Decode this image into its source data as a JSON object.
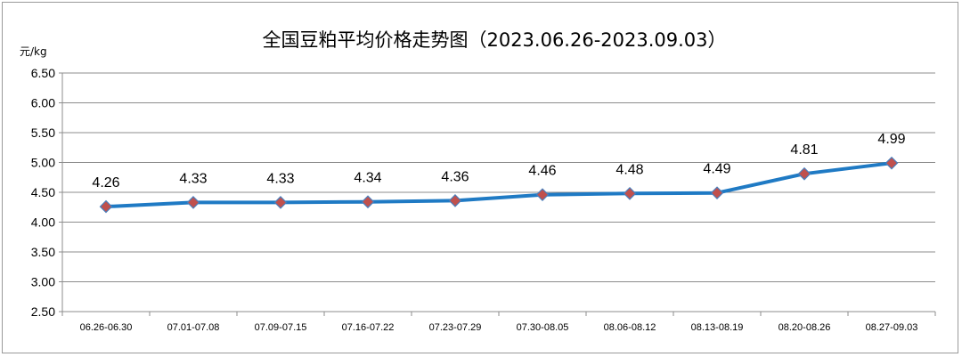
{
  "chart_data": {
    "type": "line",
    "title": "全国豆粕平均价格走势图（2023.06.26-2023.09.03）",
    "ylabel": "元/kg",
    "xlabel": "",
    "ylim": [
      2.5,
      6.5
    ],
    "yticks": [
      "2.50",
      "3.00",
      "3.50",
      "4.00",
      "4.50",
      "5.00",
      "5.50",
      "6.00",
      "6.50"
    ],
    "grid": true,
    "legend": "none",
    "categories": [
      "06.26-06.30",
      "07.01-07.08",
      "07.09-07.15",
      "07.16-07.22",
      "07.23-07.29",
      "07.30-08.05",
      "08.06-08.12",
      "08.13-08.19",
      "08.20-08.26",
      "08.27-09.03"
    ],
    "series": [
      {
        "values": [
          4.26,
          4.33,
          4.33,
          4.34,
          4.36,
          4.46,
          4.48,
          4.49,
          4.81,
          4.99
        ],
        "labels": [
          "4.26",
          "4.33",
          "4.33",
          "4.34",
          "4.36",
          "4.46",
          "4.48",
          "4.49",
          "4.81",
          "4.99"
        ],
        "line_color": "#1f7ac4",
        "marker_color": "#c0504d",
        "marker": "diamond"
      }
    ]
  }
}
